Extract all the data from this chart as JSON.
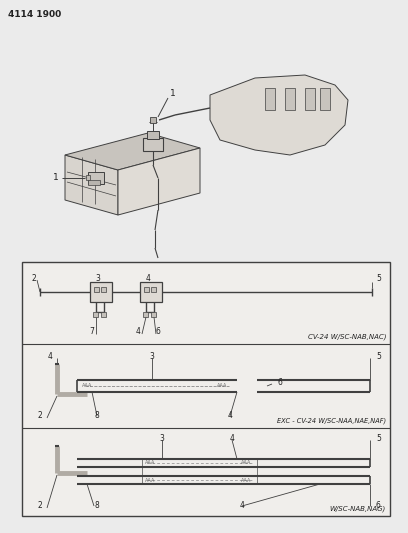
{
  "page_number": "4114 1900",
  "bg_color": "#ebebeb",
  "line_color": "#404040",
  "text_color": "#222222",
  "panel_bg": "#f0eeeb",
  "section1_label": "CV-24 W/SC-NAB,NAC)",
  "section2_label": "EXC - CV-24 W/SC-NAA,NAE,NAF)",
  "section3_label": "W/SC-NAB,NAG)",
  "fig_w": 4.08,
  "fig_h": 5.33,
  "dpi": 100
}
